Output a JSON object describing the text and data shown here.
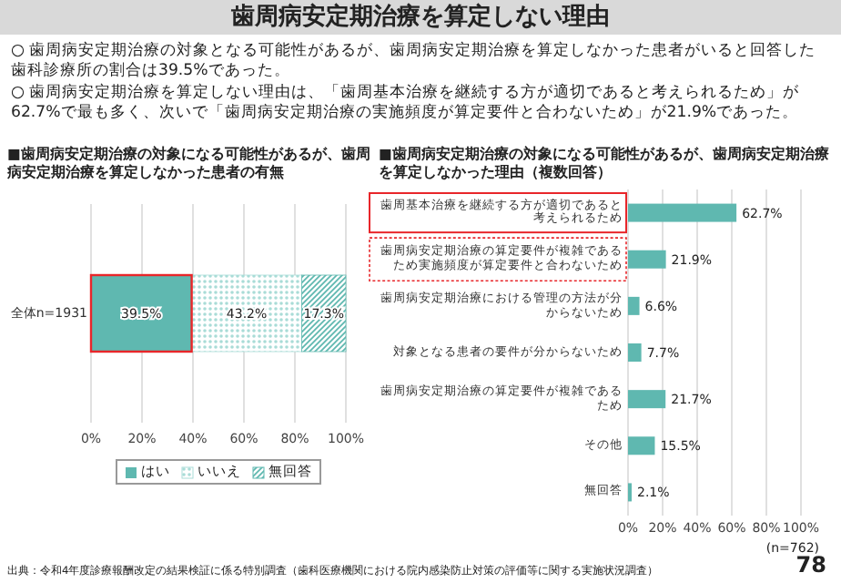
{
  "chart_data": [
    {
      "type": "bar",
      "orientation": "horizontal",
      "stacked": true,
      "title": "■歯周病安定期治療の対象になる可能性があるが、歯周病安定期治療を算定しなかった患者の有無",
      "annotations": [
        "歯周病安定期治療を算定しない理由",
        "○ 歯周病安定期治療の対象となる可能性があるが、歯周病安定期治療を算定しなかった患者がいると回答した歯科診療所の割合は39.5%であった。",
        "○ 歯周病安定期治療を算定しない理由は、「歯周基本治療を継続する方が適切であると考えられるため」が62.7%で最も多く、次いで「歯周病安定期治療の実施頻度が算定要件と合わないため」が21.9%であった。"
      ],
      "categories": [
        "全体n=1931"
      ],
      "series": [
        {
          "name": "はい",
          "color": "#5fb8b0",
          "values": [
            39.5
          ],
          "value_labels": [
            "39.5%"
          ]
        },
        {
          "name": "いいえ",
          "color": "#a9dcd7",
          "values": [
            43.2
          ],
          "value_labels": [
            "43.2%"
          ]
        },
        {
          "name": "無回答",
          "color": "#5fb8b0",
          "values": [
            17.3
          ],
          "value_labels": [
            "17.3%"
          ]
        }
      ],
      "xlim": [
        0,
        100
      ],
      "xticks": [
        {
          "value": 0,
          "label": "0%"
        },
        {
          "value": 20,
          "label": "20%"
        },
        {
          "value": 40,
          "label": "40%"
        },
        {
          "value": 60,
          "label": "60%"
        },
        {
          "value": 80,
          "label": "80%"
        },
        {
          "value": 100,
          "label": "100%"
        }
      ],
      "grid": "x",
      "legend": "bottom"
    },
    {
      "type": "bar",
      "orientation": "horizontal",
      "title": "■歯周病安定期治療の対象になる可能性があるが、歯周病安定期治療を算定しなかった理由（複数回答）",
      "annotations": [
        "(n=762)",
        "出典：令和4年度診療報酬改定の結果検証に係る特別調査（歯科医療機関における院内感染防止対策の評価等に関する実施状況調査）",
        "78"
      ],
      "categories": [
        "歯周基本治療を継続する方が適切であると考えられるため",
        "歯周病安定期治療の算定要件が複雑であるため実施頻度が算定要件と合わないため",
        "歯周病安定期治療における管理の方法が分からないため",
        "対象となる患者の要件が分からないため",
        "歯周病安定期治療の算定要件が複雑であるため",
        "その他",
        "無回答"
      ],
      "values": [
        62.7,
        21.9,
        6.6,
        7.7,
        21.7,
        15.5,
        2.1
      ],
      "value_labels": [
        "62.7%",
        "21.9%",
        "6.6%",
        "7.7%",
        "21.7%",
        "15.5%",
        "2.1%"
      ],
      "color": "#5fb8b0",
      "xlim": [
        0,
        100
      ],
      "xticks": [
        {
          "value": 0,
          "label": "0%"
        },
        {
          "value": 20,
          "label": "20%"
        },
        {
          "value": 40,
          "label": "40%"
        },
        {
          "value": 60,
          "label": "60%"
        },
        {
          "value": 80,
          "label": "80%"
        },
        {
          "value": 100,
          "label": "100%"
        }
      ],
      "grid": "x"
    }
  ]
}
